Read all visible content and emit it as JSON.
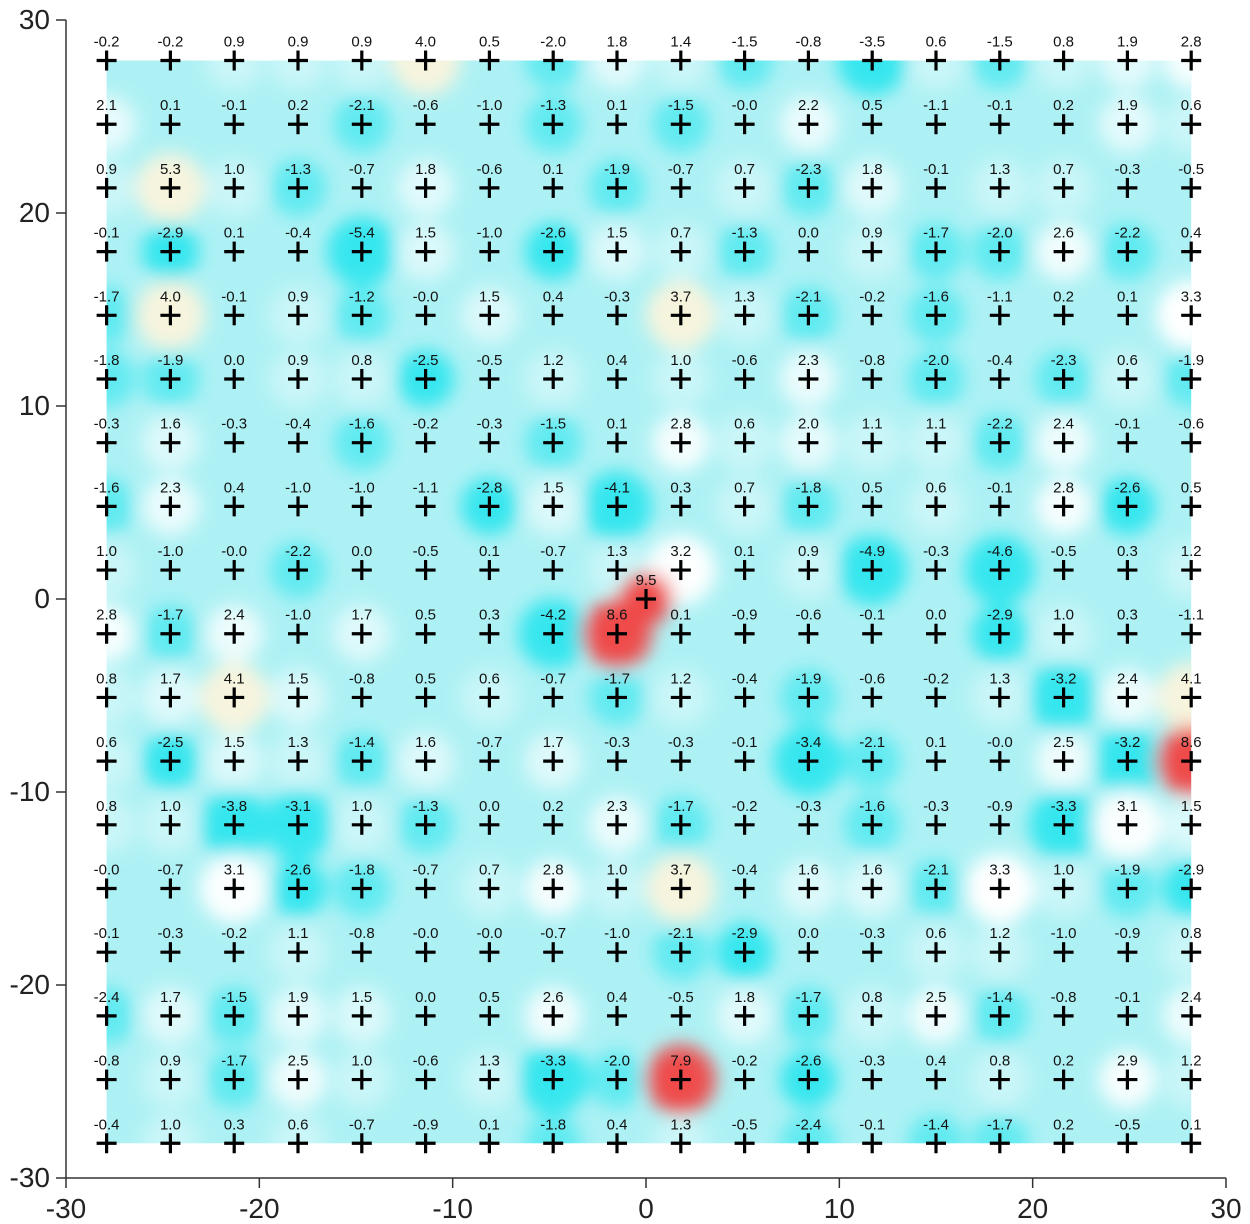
{
  "chart_data": {
    "type": "heatmap",
    "title": "",
    "xlabel": "",
    "ylabel": "",
    "xlim": [
      -30,
      30
    ],
    "ylim": [
      -30,
      30
    ],
    "x_ticks": [
      "-30",
      "-20",
      "-10",
      "0",
      "10",
      "20",
      "30"
    ],
    "y_ticks": [
      "30",
      "20",
      "10",
      "0",
      "-10",
      "-20",
      "-30"
    ],
    "x_tick_values": [
      -30,
      -20,
      -10,
      0,
      10,
      20,
      30
    ],
    "y_tick_values": [
      30,
      20,
      10,
      0,
      -10,
      -20,
      -30
    ],
    "grid_x": [
      -27.9,
      -24.6,
      -21.3,
      -18.0,
      -14.7,
      -11.4,
      -8.1,
      -4.8,
      -1.5,
      1.8,
      5.1,
      8.4,
      11.7,
      15.0,
      18.3,
      21.6,
      24.9,
      28.2
    ],
    "grid_y": [
      27.9,
      24.6,
      21.3,
      18.0,
      14.7,
      11.4,
      8.1,
      4.8,
      1.5,
      -1.8,
      -5.1,
      -8.4,
      -11.7,
      -15.0,
      -18.3,
      -21.6,
      -24.9,
      -28.2
    ],
    "values": [
      [
        "-0.2",
        "-0.2",
        "0.9",
        "0.9",
        "0.9",
        "4.0",
        "0.5",
        "-2.0",
        "1.8",
        "1.4",
        "-1.5",
        "-0.8",
        "-3.5",
        "0.6",
        "-1.5",
        "0.8",
        "1.9",
        "2.8"
      ],
      [
        "2.1",
        "0.1",
        "-0.1",
        "0.2",
        "-2.1",
        "-0.6",
        "-1.0",
        "-1.3",
        "0.1",
        "-1.5",
        "-0.0",
        "2.2",
        "0.5",
        "-1.1",
        "-0.1",
        "0.2",
        "1.9",
        "0.6"
      ],
      [
        "0.9",
        "5.3",
        "1.0",
        "-1.3",
        "-0.7",
        "1.8",
        "-0.6",
        "0.1",
        "-1.9",
        "-0.7",
        "0.7",
        "-2.3",
        "1.8",
        "-0.1",
        "1.3",
        "0.7",
        "-0.3",
        "-0.5"
      ],
      [
        "-0.1",
        "-2.9",
        "0.1",
        "-0.4",
        "-5.4",
        "1.5",
        "-1.0",
        "-2.6",
        "1.5",
        "0.7",
        "-1.3",
        "0.0",
        "0.9",
        "-1.7",
        "-2.0",
        "2.6",
        "-2.2",
        "0.4"
      ],
      [
        "-1.7",
        "4.0",
        "-0.1",
        "0.9",
        "-1.2",
        "-0.0",
        "1.5",
        "0.4",
        "-0.3",
        "3.7",
        "1.3",
        "-2.1",
        "-0.2",
        "-1.6",
        "-1.1",
        "0.2",
        "0.1",
        "3.3"
      ],
      [
        "-1.8",
        "-1.9",
        "0.0",
        "0.9",
        "0.8",
        "-2.5",
        "-0.5",
        "1.2",
        "0.4",
        "1.0",
        "-0.6",
        "2.3",
        "-0.8",
        "-2.0",
        "-0.4",
        "-2.3",
        "0.6",
        "-1.9"
      ],
      [
        "-0.3",
        "1.6",
        "-0.3",
        "-0.4",
        "-1.6",
        "-0.2",
        "-0.3",
        "-1.5",
        "0.1",
        "2.8",
        "0.6",
        "2.0",
        "1.1",
        "1.1",
        "-2.2",
        "2.4",
        "-0.1",
        "-0.6"
      ],
      [
        "-1.6",
        "2.3",
        "0.4",
        "-1.0",
        "-1.0",
        "-1.1",
        "-2.8",
        "1.5",
        "-4.1",
        "0.3",
        "0.7",
        "-1.8",
        "0.5",
        "0.6",
        "-0.1",
        "2.8",
        "-2.6",
        "0.5"
      ],
      [
        "1.0",
        "-1.0",
        "-0.0",
        "-2.2",
        "0.0",
        "-0.5",
        "0.1",
        "-0.7",
        "1.3",
        "3.2",
        "0.1",
        "0.9",
        "-4.9",
        "-0.3",
        "-4.6",
        "-0.5",
        "0.3",
        "1.2"
      ],
      [
        "2.8",
        "-1.7",
        "2.4",
        "-1.0",
        "1.7",
        "0.5",
        "0.3",
        "-4.2",
        "8.6",
        "0.1",
        "-0.9",
        "-0.6",
        "-0.1",
        "0.0",
        "-2.9",
        "1.0",
        "0.3",
        "-1.1"
      ],
      [
        "0.8",
        "1.7",
        "4.1",
        "1.5",
        "-0.8",
        "0.5",
        "0.6",
        "-0.7",
        "-1.7",
        "1.2",
        "-0.4",
        "-1.9",
        "-0.6",
        "-0.2",
        "1.3",
        "-3.2",
        "2.4",
        "4.1"
      ],
      [
        "0.6",
        "-2.5",
        "1.5",
        "1.3",
        "-1.4",
        "1.6",
        "-0.7",
        "1.7",
        "-0.3",
        "-0.3",
        "-0.1",
        "-3.4",
        "-2.1",
        "0.1",
        "-0.0",
        "2.5",
        "-3.2",
        "8.6"
      ],
      [
        "0.8",
        "1.0",
        "-3.8",
        "-3.1",
        "1.0",
        "-1.3",
        "0.0",
        "0.2",
        "2.3",
        "-1.7",
        "-0.2",
        "-0.3",
        "-1.6",
        "-0.3",
        "-0.9",
        "-3.3",
        "3.1",
        "1.5"
      ],
      [
        "-0.0",
        "-0.7",
        "3.1",
        "-2.6",
        "-1.8",
        "-0.7",
        "0.7",
        "2.8",
        "1.0",
        "3.7",
        "-0.4",
        "1.6",
        "1.6",
        "-2.1",
        "3.3",
        "1.0",
        "-1.9",
        "-2.9"
      ],
      [
        "-0.1",
        "-0.3",
        "-0.2",
        "1.1",
        "-0.8",
        "-0.0",
        "-0.0",
        "-0.7",
        "-1.0",
        "-2.1",
        "-2.9",
        "0.0",
        "-0.3",
        "0.6",
        "1.2",
        "-1.0",
        "-0.9",
        "0.8"
      ],
      [
        "-2.4",
        "1.7",
        "-1.5",
        "1.9",
        "1.5",
        "0.0",
        "0.5",
        "2.6",
        "0.4",
        "-0.5",
        "1.8",
        "-1.7",
        "0.8",
        "2.5",
        "-1.4",
        "-0.8",
        "-0.1",
        "2.4"
      ],
      [
        "-0.8",
        "0.9",
        "-1.7",
        "2.5",
        "1.0",
        "-0.6",
        "1.3",
        "-3.3",
        "-2.0",
        "7.9",
        "-0.2",
        "-2.6",
        "-0.3",
        "0.4",
        "0.8",
        "0.2",
        "2.9",
        "1.2"
      ],
      [
        "-0.4",
        "1.0",
        "0.3",
        "0.6",
        "-0.7",
        "-0.9",
        "0.1",
        "-1.8",
        "0.4",
        "1.3",
        "-0.5",
        "-2.4",
        "-0.1",
        "-1.4",
        "-1.7",
        "0.2",
        "-0.5",
        "0.1"
      ]
    ],
    "extra_points": [
      {
        "x": 0.0,
        "y": 0.0,
        "label": "9.5"
      }
    ],
    "colors": {
      "field": "#aef1f4",
      "low": "#2ee6ee",
      "high": "#f04848",
      "mid_high": "#fbf4dc",
      "neutral": "#ffffff"
    }
  }
}
